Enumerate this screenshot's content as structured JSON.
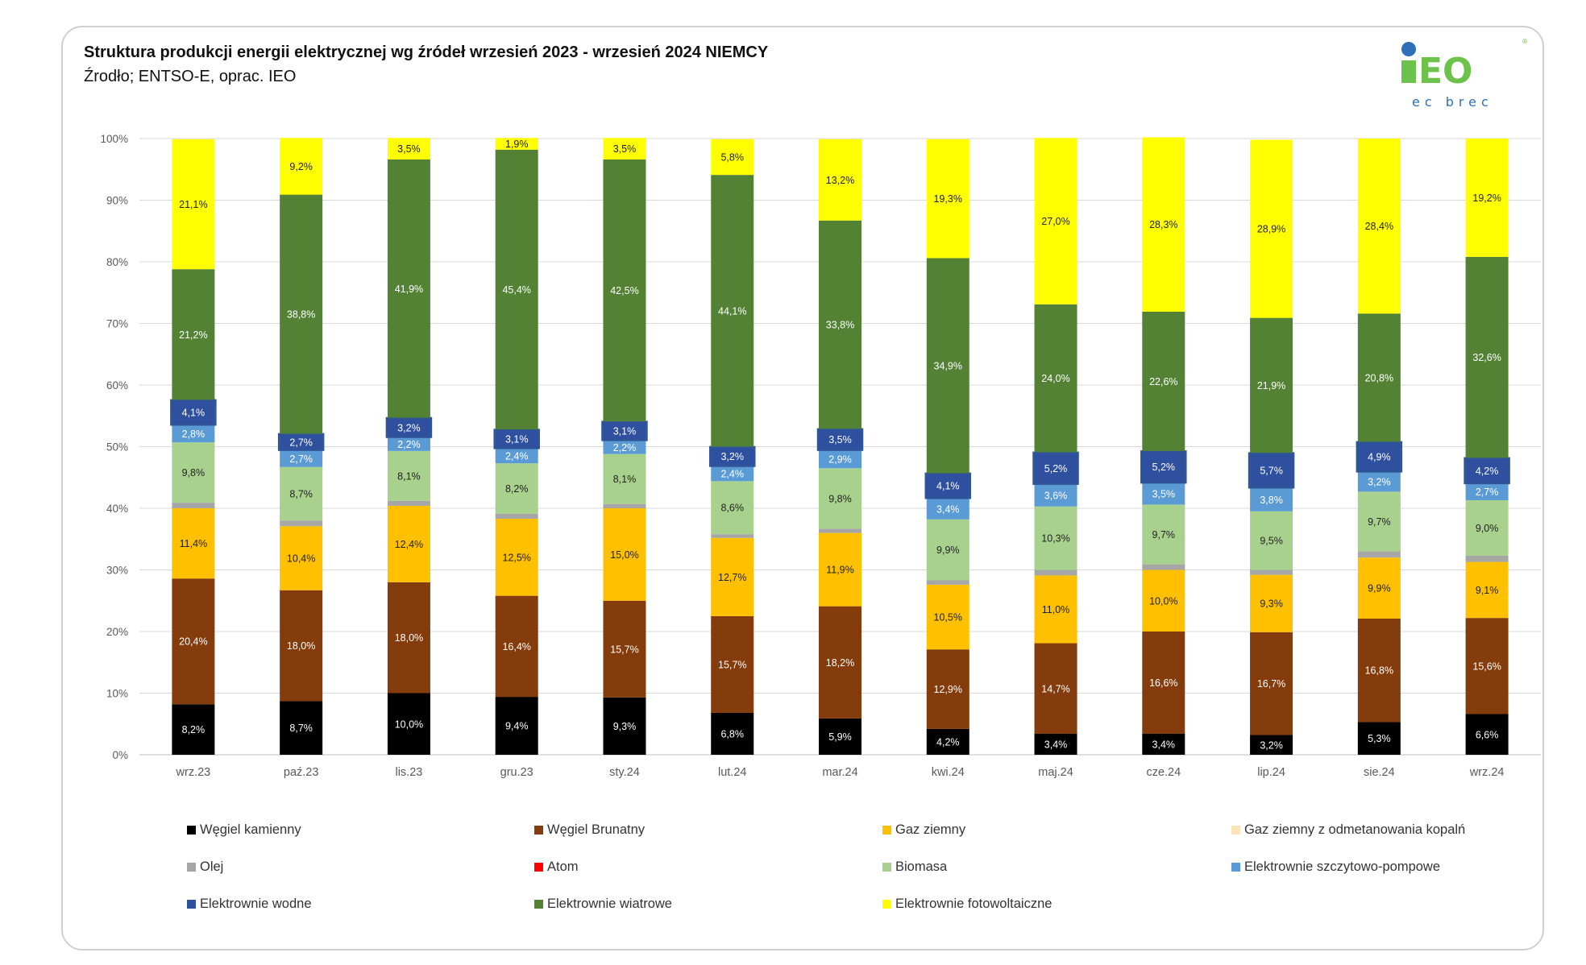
{
  "title": "Struktura produkcji energii elektrycznej wg źródeł wrzesień 2023 -  wrzesień 2024 NIEMCY",
  "subtitle": "Źrodło; ENTSO-E, oprac. IEO",
  "logo": {
    "word": "iEO",
    "tagline": "ec brec",
    "registered": "®",
    "color": "#6cc24a",
    "dot_color": "#2e6fb7"
  },
  "chart_data": {
    "type": "bar",
    "stacked": true,
    "categories": [
      "wrz.23",
      "paź.23",
      "lis.23",
      "gru.23",
      "sty.24",
      "lut.24",
      "mar.24",
      "kwi.24",
      "maj.24",
      "cze.24",
      "lip.24",
      "sie.24",
      "wrz.24"
    ],
    "y_ticks": [
      "0%",
      "10%",
      "20%",
      "30%",
      "40%",
      "50%",
      "60%",
      "70%",
      "80%",
      "90%",
      "100%"
    ],
    "ylim": [
      0,
      100
    ],
    "legend_placement": "bottom",
    "series": [
      {
        "name": "Węgiel kamienny",
        "color": "#000000",
        "label_color": "#ffffff",
        "values": [
          8.2,
          8.7,
          10.0,
          9.4,
          9.3,
          6.8,
          5.9,
          4.2,
          3.4,
          3.4,
          3.2,
          5.3,
          6.6
        ],
        "labels": [
          "8,2%",
          "8,7%",
          "10,0%",
          "9,4%",
          "9,3%",
          "6,8%",
          "5,9%",
          "4,2%",
          "3,4%",
          "3,4%",
          "3,2%",
          "5,3%",
          "6,6%"
        ]
      },
      {
        "name": "Węgiel Brunatny",
        "color": "#843c0c",
        "label_color": "#ffffff",
        "values": [
          20.4,
          18.0,
          18.0,
          16.4,
          15.7,
          15.7,
          18.2,
          12.9,
          14.7,
          16.6,
          16.7,
          16.8,
          15.6
        ],
        "labels": [
          "20,4%",
          "18,0%",
          "18,0%",
          "16,4%",
          "15,7%",
          "15,7%",
          "18,2%",
          "12,9%",
          "14,7%",
          "16,6%",
          "16,7%",
          "16,8%",
          "15,6%"
        ]
      },
      {
        "name": "Gaz ziemny",
        "color": "#ffc000",
        "label_color": "#222222",
        "values": [
          11.4,
          10.4,
          12.4,
          12.5,
          15.0,
          12.7,
          11.9,
          10.5,
          11.0,
          10.0,
          9.3,
          9.9,
          9.1
        ],
        "labels": [
          "11,4%",
          "10,4%",
          "12,4%",
          "12,5%",
          "15,0%",
          "12,7%",
          "11,9%",
          "10,5%",
          "11,0%",
          "10,0%",
          "9,3%",
          "9,9%",
          "9,1%"
        ]
      },
      {
        "name": "Gaz ziemny z odmetanowania kopalń",
        "color": "#fce4b8",
        "label_color": "#222222",
        "values": [
          0,
          0,
          0,
          0,
          0,
          0,
          0,
          0,
          0,
          0,
          0,
          0,
          0
        ],
        "labels": []
      },
      {
        "name": "Olej",
        "color": "#a6a6a6",
        "label_color": "#222222",
        "values": [
          0.9,
          0.9,
          0.8,
          0.8,
          0.7,
          0.6,
          0.7,
          0.7,
          0.9,
          0.9,
          0.8,
          1.0,
          1.0
        ],
        "labels": []
      },
      {
        "name": "Atom",
        "color": "#ff0000",
        "label_color": "#222222",
        "values": [
          0,
          0,
          0,
          0,
          0,
          0,
          0,
          0,
          0,
          0,
          0,
          0,
          0
        ],
        "labels": []
      },
      {
        "name": "Biomasa",
        "color": "#a9d18e",
        "label_color": "#222222",
        "values": [
          9.8,
          8.7,
          8.1,
          8.2,
          8.1,
          8.6,
          9.8,
          9.9,
          10.3,
          9.7,
          9.5,
          9.7,
          9.0
        ],
        "labels": [
          "9,8%",
          "8,7%",
          "8,1%",
          "8,2%",
          "8,1%",
          "8,6%",
          "9,8%",
          "9,9%",
          "10,3%",
          "9,7%",
          "9,5%",
          "9,7%",
          "9,0%"
        ]
      },
      {
        "name": "Elektrownie szczytowo-pompowe",
        "color": "#5b9bd5",
        "label_color": "#ffffff",
        "values": [
          2.8,
          2.7,
          2.2,
          2.4,
          2.2,
          2.4,
          2.9,
          3.4,
          3.6,
          3.5,
          3.8,
          3.2,
          2.7
        ],
        "labels": [
          "2,8%",
          "2,7%",
          "2,2%",
          "2,4%",
          "2,2%",
          "2,4%",
          "2,9%",
          "3,4%",
          "3,6%",
          "3,5%",
          "3,8%",
          "3,2%",
          "2,7%"
        ]
      },
      {
        "name": "Elektrownie wodne",
        "color": "#2f4f9f",
        "label_color": "#ffffff",
        "values": [
          4.1,
          2.7,
          3.2,
          3.1,
          3.1,
          3.2,
          3.5,
          4.1,
          5.2,
          5.2,
          5.7,
          4.9,
          4.2
        ],
        "labels": [
          "4,1%",
          "2,7%",
          "3,2%",
          "3,1%",
          "3,1%",
          "3,2%",
          "3,5%",
          "4,1%",
          "5,2%",
          "5,2%",
          "5,7%",
          "4,9%",
          "4,2%"
        ]
      },
      {
        "name": "Elektrownie wiatrowe",
        "color": "#548235",
        "label_color": "#ffffff",
        "values": [
          21.2,
          38.8,
          41.9,
          45.4,
          42.5,
          44.1,
          33.8,
          34.9,
          24.0,
          22.6,
          21.9,
          20.8,
          32.6
        ],
        "labels": [
          "21,2%",
          "38,8%",
          "41,9%",
          "45,4%",
          "42,5%",
          "44,1%",
          "33,8%",
          "34,9%",
          "24,0%",
          "22,6%",
          "21,9%",
          "20,8%",
          "32,6%"
        ]
      },
      {
        "name": "Elektrownie fotowoltaiczne",
        "color": "#ffff00",
        "label_color": "#222222",
        "values": [
          21.1,
          9.2,
          3.5,
          1.9,
          3.5,
          5.8,
          13.2,
          19.3,
          27.0,
          28.3,
          28.9,
          28.4,
          19.2
        ],
        "labels": [
          "21,1%",
          "9,2%",
          "3,5%",
          "1,9%",
          "3,5%",
          "5,8%",
          "13,2%",
          "19,3%",
          "27,0%",
          "28,3%",
          "28,9%",
          "28,4%",
          "19,2%"
        ]
      }
    ]
  }
}
